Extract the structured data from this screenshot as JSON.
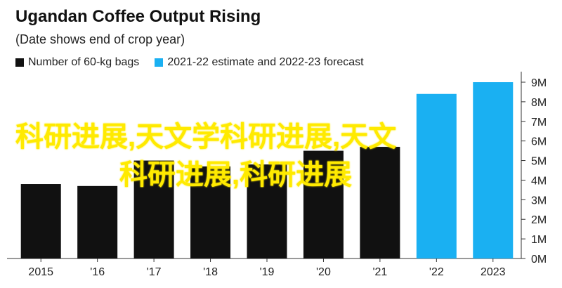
{
  "title": "Ugandan Coffee Output Rising",
  "subtitle": "(Date shows end of crop year)",
  "legend": [
    {
      "label": "Number of 60-kg bags",
      "color": "#111111"
    },
    {
      "label": "2021-22 estimate and 2022-23 forecast",
      "color": "#1ab0f2"
    }
  ],
  "watermark": {
    "line1": "科研进展,天文学科研进展,天文",
    "line2": "科研进展,科研进展"
  },
  "chart_data": {
    "type": "bar",
    "categories": [
      "2015",
      "'16",
      "'17",
      "'18",
      "'19",
      "'20",
      "'21",
      "'22",
      "2023"
    ],
    "values": [
      3.8,
      3.7,
      5.0,
      4.7,
      4.8,
      5.5,
      5.7,
      8.4,
      9.0
    ],
    "series_colors": [
      "#111111",
      "#111111",
      "#111111",
      "#111111",
      "#111111",
      "#111111",
      "#111111",
      "#1ab0f2",
      "#1ab0f2"
    ],
    "ylim": [
      0,
      9
    ],
    "yticks": [
      "0M",
      "1M",
      "2M",
      "3M",
      "4M",
      "5M",
      "6M",
      "7M",
      "8M",
      "9M"
    ],
    "grid": false
  }
}
